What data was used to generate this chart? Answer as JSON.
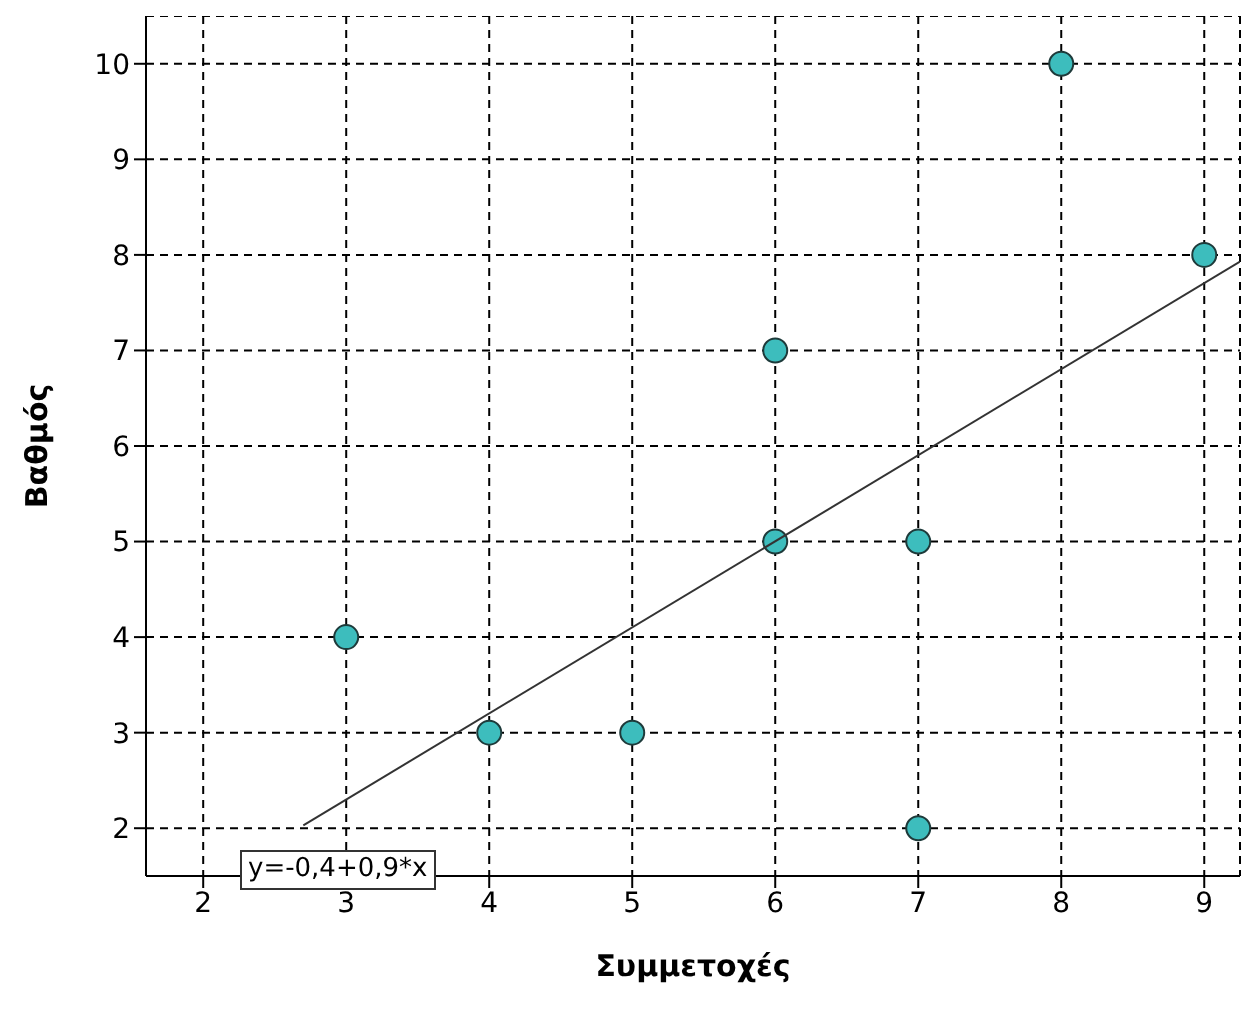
{
  "chart_data": {
    "type": "scatter",
    "xlabel": "Συμμετοχές",
    "ylabel": "Βαθμός",
    "series": [
      {
        "color": "#3dbdbd",
        "marker": "circle",
        "x": [
          3,
          4,
          5,
          6,
          6,
          7,
          7,
          8,
          9
        ],
        "values": [
          4,
          3,
          3,
          7,
          5,
          5,
          2,
          10,
          8
        ]
      },
      {
        "type": "line",
        "color": "#333333",
        "marker": "none",
        "x": [
          2.7,
          9.25
        ],
        "values": [
          2.03,
          7.93
        ]
      }
    ],
    "xlim": [
      1.6,
      9.25
    ],
    "ylim": [
      1.5,
      10.5
    ],
    "xticks": [
      2,
      3,
      4,
      5,
      6,
      7,
      8,
      9
    ],
    "yticks": [
      2,
      3,
      4,
      5,
      6,
      7,
      8,
      9,
      10
    ],
    "grid": true,
    "annotations": [
      "y=-0,4+0,9*x"
    ]
  }
}
